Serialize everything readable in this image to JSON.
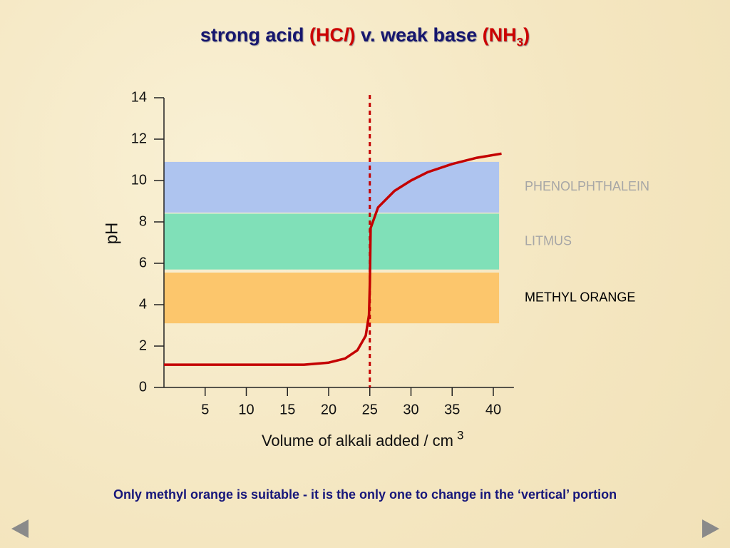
{
  "chart_data": {
    "type": "line",
    "title_parts": [
      "strong acid",
      "(HC",
      "l",
      ")",
      "v. weak base",
      "(NH",
      "3",
      ")"
    ],
    "x_label": "Volume of alkali added / cm",
    "x_label_superscript": "3",
    "y_label": "pH",
    "xlim": [
      0,
      42.5
    ],
    "ylim": [
      0,
      14
    ],
    "xticks": [
      5,
      10,
      15,
      20,
      25,
      30,
      35,
      40
    ],
    "yticks": [
      0,
      2,
      4,
      6,
      8,
      10,
      12,
      14
    ],
    "x": [
      0,
      5,
      10,
      15,
      17,
      20,
      22,
      23.5,
      24.5,
      24.9,
      25,
      25.1,
      26,
      28,
      30,
      32,
      35,
      38,
      41
    ],
    "series": [
      {
        "color": "#c40000",
        "values": [
          1.1,
          1.1,
          1.1,
          1.1,
          1.1,
          1.2,
          1.4,
          1.8,
          2.5,
          3.5,
          5,
          7.7,
          8.7,
          9.5,
          10.0,
          10.4,
          10.8,
          11.1,
          11.3
        ]
      }
    ],
    "equivalence_x": 25,
    "equivalence_color": "#c40000",
    "bands_xmax": 40.7,
    "bands": [
      {
        "name": "PHENOLPHTHALEIN",
        "color": "#aec4ef",
        "label_color": "#a6a6a6",
        "ymin": 8.45,
        "ymax": 10.9
      },
      {
        "name": "LITMUS",
        "color": "#80e0b8",
        "label_color": "#a6a6a6",
        "ymin": 5.7,
        "ymax": 8.4
      },
      {
        "name": "METHYL ORANGE",
        "color": "#fcc66c",
        "label_color": "#000000",
        "ymin": 3.1,
        "ymax": 5.55
      }
    ],
    "note": "Only methyl orange is suitable - it is the only one to change in the ‘vertical’ portion"
  }
}
